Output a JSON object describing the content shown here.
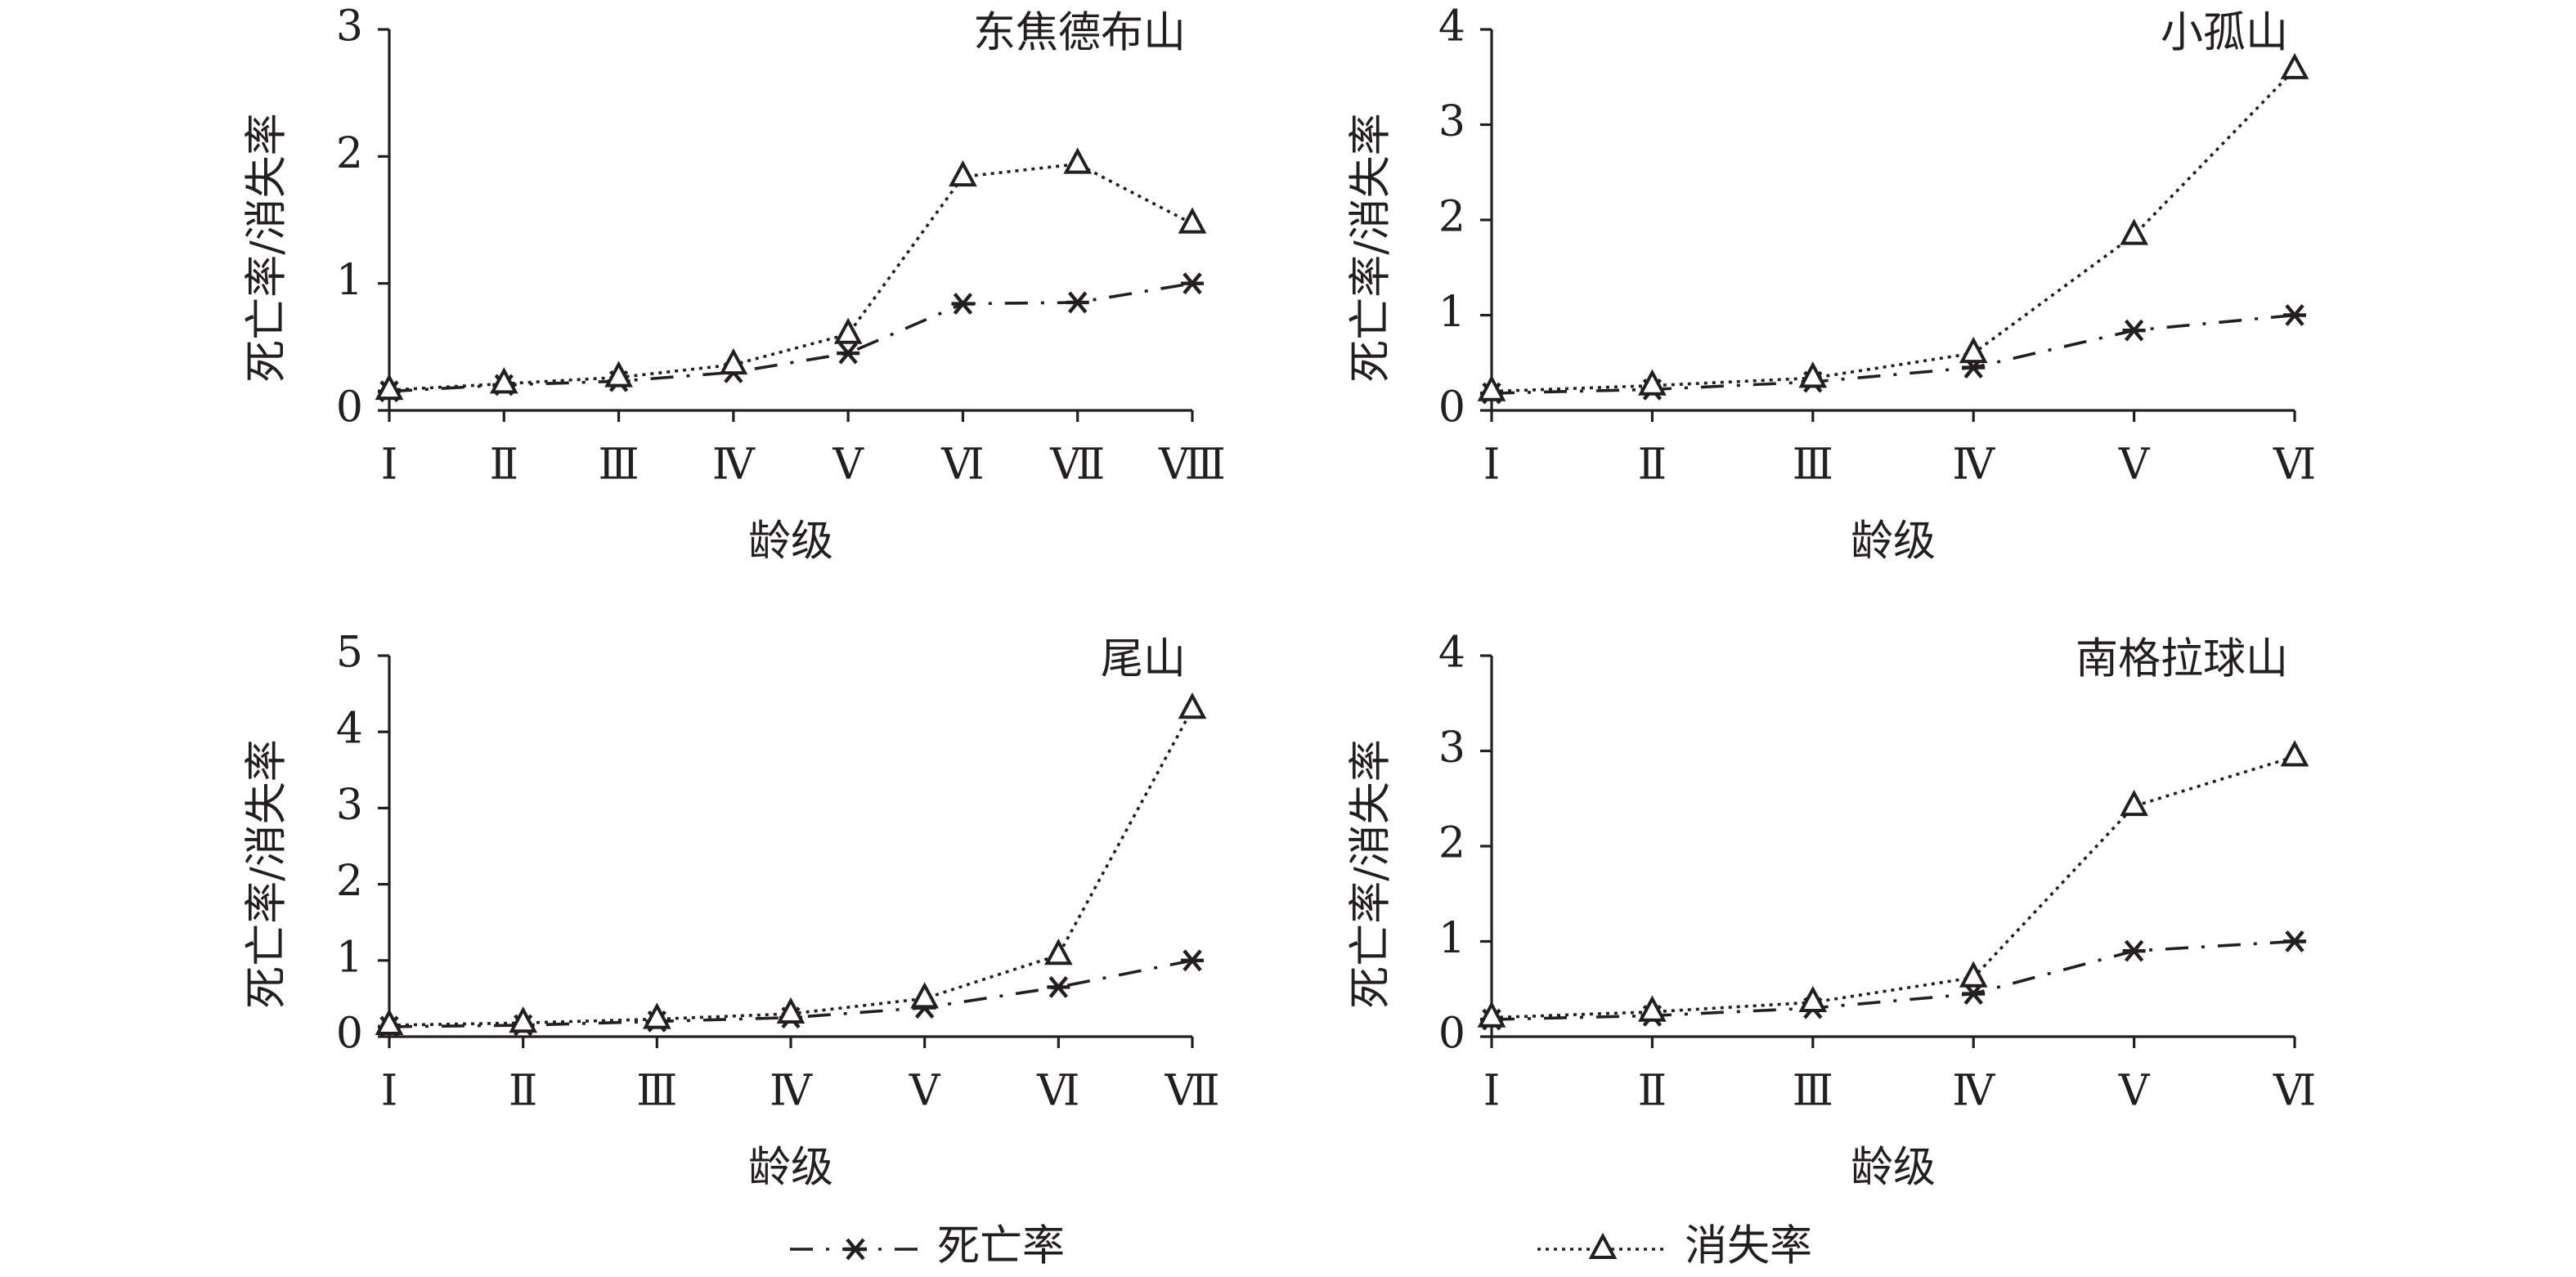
{
  "chart_data": [
    {
      "type": "line",
      "title": "东焦德布山",
      "x_label": "龄级",
      "y_label": "死亡率/消失率",
      "categories": [
        "Ⅰ",
        "Ⅱ",
        "Ⅲ",
        "Ⅳ",
        "Ⅴ",
        "Ⅵ",
        "Ⅶ",
        "Ⅷ"
      ],
      "ylim": [
        0,
        3
      ],
      "yticks": [
        0,
        1,
        2,
        3
      ],
      "series": [
        {
          "name": "死亡率",
          "color": "#231f20",
          "line_style": "dashdot",
          "marker": "asterisk",
          "values": [
            0.15,
            0.2,
            0.23,
            0.3,
            0.45,
            0.84,
            0.85,
            1.0
          ]
        },
        {
          "name": "消失率",
          "color": "#231f20",
          "line_style": "dotted",
          "marker": "triangle",
          "values": [
            0.16,
            0.21,
            0.26,
            0.36,
            0.6,
            1.84,
            1.94,
            1.47
          ]
        }
      ]
    },
    {
      "type": "line",
      "title": "小孤山",
      "x_label": "龄级",
      "y_label": "死亡率/消失率",
      "categories": [
        "Ⅰ",
        "Ⅱ",
        "Ⅲ",
        "Ⅳ",
        "Ⅴ",
        "Ⅵ"
      ],
      "ylim": [
        0,
        4
      ],
      "yticks": [
        0,
        1,
        2,
        3,
        4
      ],
      "series": [
        {
          "name": "死亡率",
          "color": "#231f20",
          "line_style": "dashdot",
          "marker": "asterisk",
          "values": [
            0.18,
            0.22,
            0.3,
            0.45,
            0.84,
            1.0
          ]
        },
        {
          "name": "消失率",
          "color": "#231f20",
          "line_style": "dotted",
          "marker": "triangle",
          "values": [
            0.2,
            0.26,
            0.34,
            0.6,
            1.84,
            3.58
          ]
        }
      ]
    },
    {
      "type": "line",
      "title": "尾山",
      "x_label": "龄级",
      "y_label": "死亡率/消失率",
      "categories": [
        "Ⅰ",
        "Ⅱ",
        "Ⅲ",
        "Ⅳ",
        "Ⅴ",
        "Ⅵ",
        "Ⅶ"
      ],
      "ylim": [
        0,
        5
      ],
      "yticks": [
        0,
        1,
        2,
        3,
        4,
        5
      ],
      "series": [
        {
          "name": "死亡率",
          "color": "#231f20",
          "line_style": "dashdot",
          "marker": "asterisk",
          "values": [
            0.13,
            0.15,
            0.2,
            0.25,
            0.38,
            0.65,
            1.0
          ]
        },
        {
          "name": "消失率",
          "color": "#231f20",
          "line_style": "dotted",
          "marker": "triangle",
          "values": [
            0.15,
            0.18,
            0.23,
            0.3,
            0.5,
            1.07,
            4.3
          ]
        }
      ]
    },
    {
      "type": "line",
      "title": "南格拉球山",
      "x_label": "龄级",
      "y_label": "死亡率/消失率",
      "categories": [
        "Ⅰ",
        "Ⅱ",
        "Ⅲ",
        "Ⅳ",
        "Ⅴ",
        "Ⅵ"
      ],
      "ylim": [
        0,
        4
      ],
      "yticks": [
        0,
        1,
        2,
        3,
        4
      ],
      "series": [
        {
          "name": "死亡率",
          "color": "#231f20",
          "line_style": "dashdot",
          "marker": "asterisk",
          "values": [
            0.18,
            0.22,
            0.3,
            0.45,
            0.9,
            1.0
          ]
        },
        {
          "name": "消失率",
          "color": "#231f20",
          "line_style": "dotted",
          "marker": "triangle",
          "values": [
            0.2,
            0.26,
            0.36,
            0.62,
            2.42,
            2.94
          ]
        }
      ]
    }
  ]
}
